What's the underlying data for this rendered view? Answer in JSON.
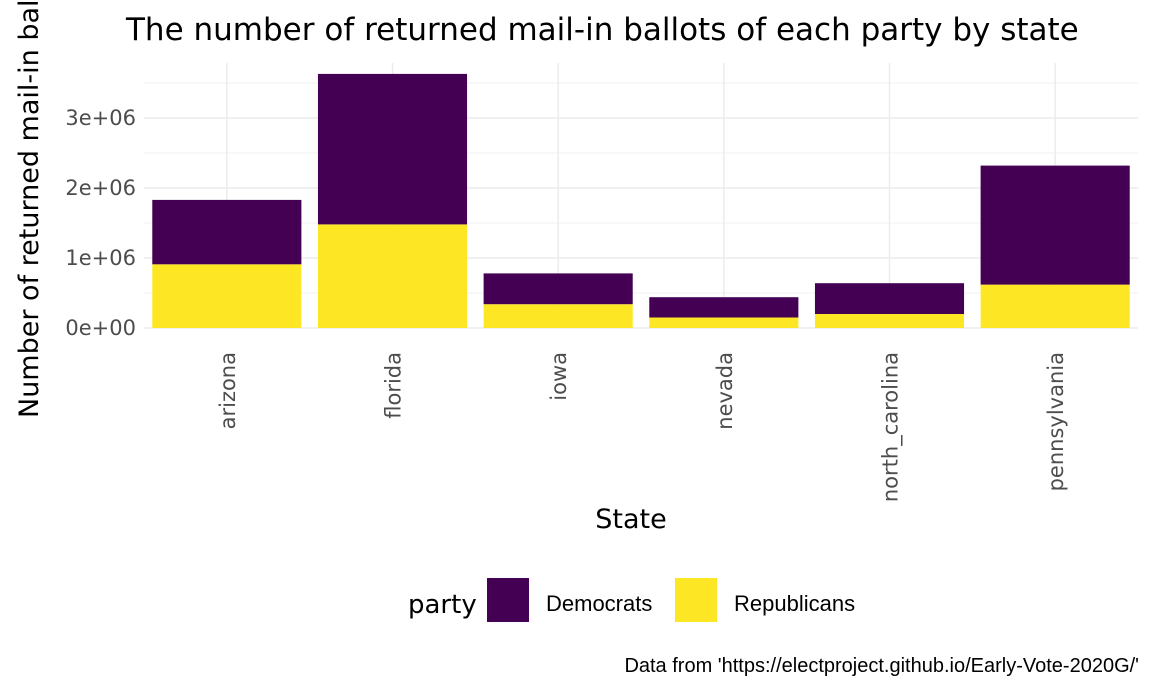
{
  "chart_data": {
    "type": "bar",
    "stacked": true,
    "title": "The number of returned mail-in ballots of each party by state",
    "xlabel": "State",
    "ylabel": "Number of returned mail-in ballots",
    "categories": [
      "arizona",
      "florida",
      "iowa",
      "nevada",
      "north_carolina",
      "pennsylvania"
    ],
    "series": [
      {
        "name": "Democrats",
        "color": "#440154",
        "values": [
          920000,
          2150000,
          440000,
          290000,
          440000,
          1700000
        ]
      },
      {
        "name": "Republicans",
        "color": "#FDE725",
        "values": [
          910000,
          1480000,
          340000,
          150000,
          200000,
          620000
        ]
      }
    ],
    "ylim": [
      0,
      3800000
    ],
    "yticks": [
      {
        "value": 0,
        "label": "0e+00"
      },
      {
        "value": 1000000,
        "label": "1e+06"
      },
      {
        "value": 2000000,
        "label": "2e+06"
      },
      {
        "value": 3000000,
        "label": "3e+06"
      }
    ],
    "grid": true,
    "legend": {
      "title": "party",
      "position": "bottom",
      "items": [
        {
          "label": "Democrats",
          "color": "#440154"
        },
        {
          "label": "Republicans",
          "color": "#FDE725"
        }
      ]
    },
    "caption": "Data from 'https://electproject.github.io/Early-Vote-2020G/'"
  }
}
